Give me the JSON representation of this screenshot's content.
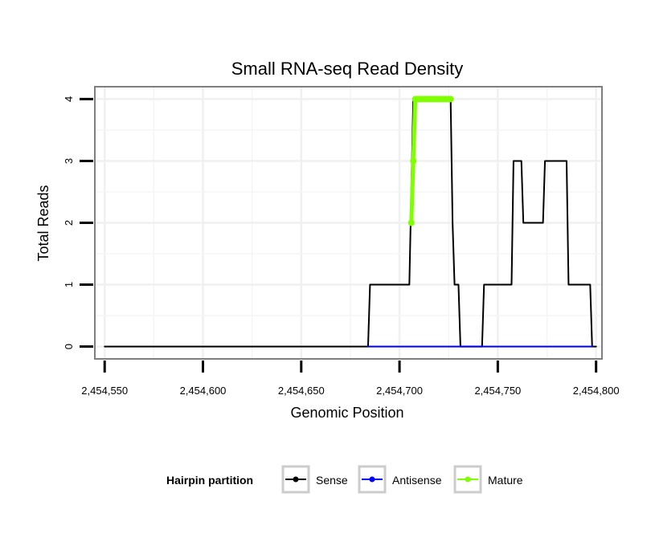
{
  "chart_data": {
    "type": "line",
    "title": "Small RNA-seq Read Density",
    "xlabel": "Genomic Position",
    "ylabel": "Total Reads",
    "xlim": [
      2454545,
      2454803
    ],
    "ylim": [
      -0.2,
      4.2
    ],
    "xticks": [
      2454550,
      2454600,
      2454650,
      2454700,
      2454750,
      2454800
    ],
    "xtick_labels": [
      "2,454,550",
      "2,454,600",
      "2,454,650",
      "2,454,700",
      "2,454,750",
      "2,454,800"
    ],
    "yticks": [
      0,
      1,
      2,
      3,
      4
    ],
    "ytick_labels": [
      "0",
      "1",
      "2",
      "3",
      "4"
    ],
    "grid": true,
    "legend": {
      "title": "Hairpin partition",
      "position": "bottom",
      "entries": [
        "Sense",
        "Antisense",
        "Mature"
      ]
    },
    "series": [
      {
        "name": "Sense",
        "color": "#000000",
        "marker": false,
        "x": [
          2454550,
          2454684,
          2454685,
          2454705,
          2454707,
          2454708,
          2454726,
          2454727,
          2454728,
          2454730,
          2454731,
          2454742,
          2454743,
          2454757,
          2454758,
          2454762,
          2454763,
          2454768,
          2454769,
          2454773,
          2454774,
          2454785,
          2454786,
          2454797,
          2454798,
          2454800
        ],
        "values": [
          0,
          0,
          1,
          1,
          4,
          4,
          4,
          2,
          1,
          1,
          0,
          0,
          1,
          1,
          3,
          3,
          2,
          2,
          2,
          2,
          3,
          3,
          1,
          1,
          0,
          0
        ]
      },
      {
        "name": "Antisense",
        "color": "#0000ff",
        "marker": false,
        "x": [
          2454684,
          2454798
        ],
        "values": [
          0,
          0
        ]
      },
      {
        "name": "Mature",
        "color": "#7fff00",
        "marker": true,
        "x": [
          2454706,
          2454707,
          2454708,
          2454709,
          2454710,
          2454711,
          2454712,
          2454713,
          2454714,
          2454715,
          2454716,
          2454717,
          2454718,
          2454719,
          2454720,
          2454721,
          2454722,
          2454723,
          2454724,
          2454725,
          2454726
        ],
        "values": [
          2,
          3,
          4,
          4,
          4,
          4,
          4,
          4,
          4,
          4,
          4,
          4,
          4,
          4,
          4,
          4,
          4,
          4,
          4,
          4,
          4
        ]
      }
    ]
  }
}
